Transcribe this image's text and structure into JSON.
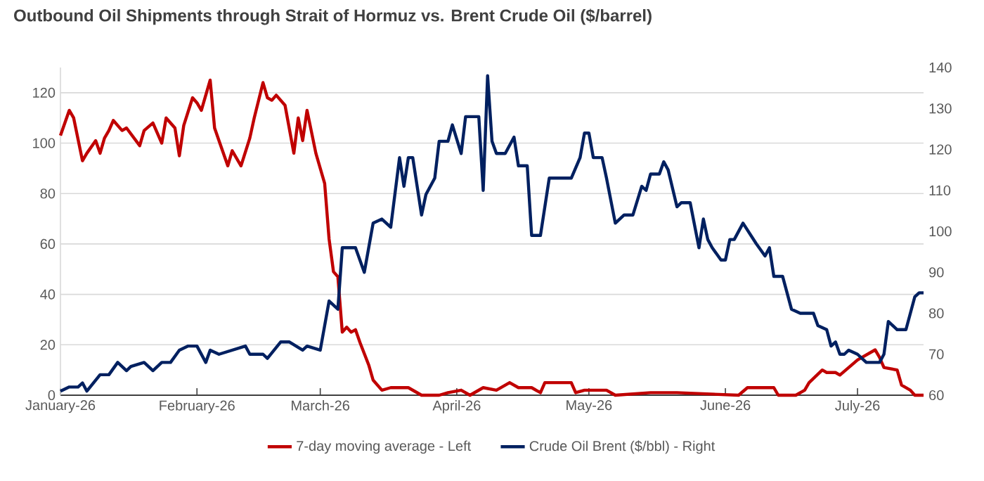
{
  "chart_data": {
    "type": "line",
    "title": "Outbound Oil Shipments through Strait of Hormuz vs. Brent Crude Oil ($/barrel)",
    "xlim": [
      "2026-01-01",
      "2026-07-16"
    ],
    "xticks": [
      {
        "value": "2026-01-01",
        "label": "January-26"
      },
      {
        "value": "2026-02-01",
        "label": "February-26"
      },
      {
        "value": "2026-03-01",
        "label": "March-26"
      },
      {
        "value": "2026-04-01",
        "label": "April-26"
      },
      {
        "value": "2026-05-01",
        "label": "May-26"
      },
      {
        "value": "2026-06-01",
        "label": "June-26"
      },
      {
        "value": "2026-07-01",
        "label": "July-26"
      }
    ],
    "ylim": [
      0,
      130
    ],
    "yticks": [
      0,
      20,
      40,
      60,
      80,
      100,
      120
    ],
    "y2lim": [
      60,
      140
    ],
    "y2ticks": [
      60,
      70,
      80,
      90,
      100,
      110,
      120,
      130,
      140
    ],
    "grid": "y",
    "legend": "bottom",
    "marker": "none",
    "line_style": "solid",
    "series": [
      {
        "name": "7-day moving average - Left",
        "color": "#c00000",
        "axis": "y",
        "x": [
          "2026-01-01",
          "2026-01-03",
          "2026-01-04",
          "2026-01-06",
          "2026-01-07",
          "2026-01-09",
          "2026-01-10",
          "2026-01-11",
          "2026-01-12",
          "2026-01-13",
          "2026-01-15",
          "2026-01-16",
          "2026-01-19",
          "2026-01-20",
          "2026-01-22",
          "2026-01-24",
          "2026-01-25",
          "2026-01-27",
          "2026-01-28",
          "2026-01-29",
          "2026-01-31",
          "2026-02-01",
          "2026-02-02",
          "2026-02-04",
          "2026-02-05",
          "2026-02-06",
          "2026-02-08",
          "2026-02-09",
          "2026-02-11",
          "2026-02-13",
          "2026-02-14",
          "2026-02-16",
          "2026-02-17",
          "2026-02-18",
          "2026-02-19",
          "2026-02-21",
          "2026-02-23",
          "2026-02-24",
          "2026-02-25",
          "2026-02-26",
          "2026-02-28",
          "2026-03-02",
          "2026-03-03",
          "2026-03-04",
          "2026-03-05",
          "2026-03-06",
          "2026-03-07",
          "2026-03-08",
          "2026-03-09",
          "2026-03-10",
          "2026-03-12",
          "2026-03-13",
          "2026-03-15",
          "2026-03-17",
          "2026-03-21",
          "2026-03-24",
          "2026-03-28",
          "2026-03-30",
          "2026-04-02",
          "2026-04-04",
          "2026-04-07",
          "2026-04-10",
          "2026-04-13",
          "2026-04-15",
          "2026-04-18",
          "2026-04-20",
          "2026-04-21",
          "2026-04-27",
          "2026-04-28",
          "2026-04-30",
          "2026-05-05",
          "2026-05-07",
          "2026-05-15",
          "2026-05-21",
          "2026-06-04",
          "2026-06-06",
          "2026-06-12",
          "2026-06-13",
          "2026-06-17",
          "2026-06-19",
          "2026-06-20",
          "2026-06-23",
          "2026-06-24",
          "2026-06-26",
          "2026-06-27",
          "2026-06-29",
          "2026-07-01",
          "2026-07-03",
          "2026-07-05",
          "2026-07-06",
          "2026-07-07",
          "2026-07-10",
          "2026-07-11",
          "2026-07-13",
          "2026-07-14",
          "2026-07-16"
        ],
        "values": [
          103,
          113,
          110,
          93,
          96,
          101,
          96,
          102,
          105,
          109,
          105,
          106,
          99,
          105,
          108,
          100,
          110,
          106,
          95,
          107,
          118,
          116,
          113,
          125,
          106,
          101,
          91,
          97,
          91,
          102,
          110,
          124,
          118,
          117,
          119,
          115,
          96,
          110,
          101,
          113,
          96,
          84,
          62,
          49,
          47,
          25,
          27,
          25,
          26,
          21,
          12,
          6,
          2,
          3,
          3,
          0,
          0,
          1,
          2,
          0,
          3,
          2,
          5,
          3,
          3,
          1,
          5,
          5,
          1,
          2,
          2,
          0,
          1,
          1,
          0,
          3,
          3,
          0,
          0,
          2,
          5,
          10,
          9,
          9,
          8,
          11,
          14,
          16,
          18,
          15,
          11,
          10,
          4,
          2,
          0,
          0
        ]
      },
      {
        "name": "Crude Oil Brent ($/bbl) - Right",
        "color": "#002060",
        "axis": "y2",
        "x": [
          "2026-01-01",
          "2026-01-03",
          "2026-01-05",
          "2026-01-06",
          "2026-01-07",
          "2026-01-10",
          "2026-01-12",
          "2026-01-14",
          "2026-01-16",
          "2026-01-17",
          "2026-01-20",
          "2026-01-22",
          "2026-01-24",
          "2026-01-26",
          "2026-01-28",
          "2026-01-30",
          "2026-02-01",
          "2026-02-03",
          "2026-02-04",
          "2026-02-06",
          "2026-02-09",
          "2026-02-12",
          "2026-02-13",
          "2026-02-16",
          "2026-02-17",
          "2026-02-20",
          "2026-02-22",
          "2026-02-25",
          "2026-02-26",
          "2026-03-01",
          "2026-03-03",
          "2026-03-05",
          "2026-03-06",
          "2026-03-09",
          "2026-03-11",
          "2026-03-13",
          "2026-03-15",
          "2026-03-17",
          "2026-03-19",
          "2026-03-20",
          "2026-03-21",
          "2026-03-22",
          "2026-03-24",
          "2026-03-25",
          "2026-03-27",
          "2026-03-28",
          "2026-03-30",
          "2026-03-31",
          "2026-04-02",
          "2026-04-03",
          "2026-04-06",
          "2026-04-07",
          "2026-04-08",
          "2026-04-09",
          "2026-04-10",
          "2026-04-12",
          "2026-04-14",
          "2026-04-15",
          "2026-04-17",
          "2026-04-18",
          "2026-04-20",
          "2026-04-22",
          "2026-04-23",
          "2026-04-27",
          "2026-04-29",
          "2026-04-30",
          "2026-05-01",
          "2026-05-02",
          "2026-05-04",
          "2026-05-05",
          "2026-05-07",
          "2026-05-09",
          "2026-05-11",
          "2026-05-13",
          "2026-05-14",
          "2026-05-15",
          "2026-05-17",
          "2026-05-18",
          "2026-05-19",
          "2026-05-21",
          "2026-05-22",
          "2026-05-24",
          "2026-05-26",
          "2026-05-27",
          "2026-05-28",
          "2026-05-29",
          "2026-05-31",
          "2026-06-01",
          "2026-06-02",
          "2026-06-03",
          "2026-06-05",
          "2026-06-08",
          "2026-06-10",
          "2026-06-11",
          "2026-06-12",
          "2026-06-14",
          "2026-06-16",
          "2026-06-18",
          "2026-06-19",
          "2026-06-21",
          "2026-06-22",
          "2026-06-24",
          "2026-06-25",
          "2026-06-26",
          "2026-06-27",
          "2026-06-28",
          "2026-06-29",
          "2026-07-01",
          "2026-07-03",
          "2026-07-06",
          "2026-07-07",
          "2026-07-08",
          "2026-07-10",
          "2026-07-12",
          "2026-07-14",
          "2026-07-15",
          "2026-07-16"
        ],
        "values": [
          61,
          62,
          62,
          63,
          61,
          65,
          65,
          68,
          66,
          67,
          68,
          66,
          68,
          68,
          71,
          72,
          72,
          68,
          71,
          70,
          71,
          72,
          70,
          70,
          69,
          73,
          73,
          71,
          72,
          71,
          83,
          81,
          96,
          96,
          90,
          102,
          103,
          101,
          118,
          111,
          118,
          118,
          104,
          109,
          113,
          122,
          122,
          126,
          119,
          128,
          128,
          110,
          138,
          122,
          119,
          119,
          123,
          116,
          116,
          99,
          99,
          113,
          113,
          113,
          118,
          124,
          124,
          118,
          118,
          113,
          102,
          104,
          104,
          111,
          110,
          114,
          114,
          117,
          115,
          106,
          107,
          107,
          96,
          103,
          98,
          96,
          93,
          93,
          98,
          98,
          102,
          97,
          94,
          96,
          89,
          89,
          81,
          80,
          80,
          80,
          77,
          76,
          72,
          73,
          70,
          70,
          71,
          70,
          68,
          68,
          70,
          78,
          76,
          76,
          84,
          85,
          85
        ]
      }
    ]
  }
}
